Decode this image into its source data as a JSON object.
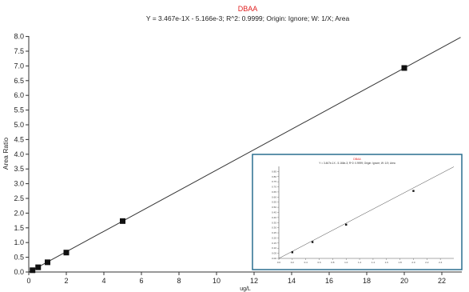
{
  "chart_data": [
    {
      "type": "scatter",
      "title": "DBAA",
      "subtitle": "Y = 3.467e-1X - 5.166e-3; R^2: 0.9999; Origin: Ignore; W: 1/X; Area",
      "xlabel": "ug/L",
      "ylabel": "Area Ratio",
      "xlim": [
        0,
        23
      ],
      "ylim": [
        0,
        8.0
      ],
      "x_ticks": [
        0,
        2,
        4,
        6,
        8,
        10,
        12,
        14,
        16,
        18,
        20,
        22
      ],
      "y_ticks": [
        "0.0",
        "0.5",
        "1.0",
        "1.5",
        "2.0",
        "2.5",
        "3.0",
        "3.5",
        "4.0",
        "4.5",
        "5.0",
        "5.5",
        "6.0",
        "6.5",
        "7.0",
        "7.5",
        "8.0"
      ],
      "fit": {
        "slope": 0.3467,
        "intercept": -0.005166
      },
      "points": [
        {
          "x": 0.2,
          "y": 0.06
        },
        {
          "x": 0.5,
          "y": 0.16
        },
        {
          "x": 1.0,
          "y": 0.33
        },
        {
          "x": 2.0,
          "y": 0.66
        },
        {
          "x": 5.0,
          "y": 1.73
        },
        {
          "x": 20.0,
          "y": 6.93
        }
      ],
      "colors": {
        "title": "#e02020",
        "marker": "#111111",
        "line": "#333333"
      }
    },
    {
      "type": "scatter",
      "title": "DBAA",
      "subtitle": "Y = 3.467e-1X - 5.166e-3; R^2: 0.9999; Origin: Ignore; W: 1/X; Area",
      "xlabel": "",
      "ylabel": "",
      "xlim": [
        0,
        2.6
      ],
      "ylim": [
        0,
        0.9
      ],
      "x_ticks": [
        "0.0",
        "0.2",
        "0.4",
        "0.6",
        "0.8",
        "1.0",
        "1.2",
        "1.4",
        "1.6",
        "1.8",
        "2.0",
        "2.2",
        "2.4"
      ],
      "y_ticks": [
        "0.00",
        "0.05",
        "0.10",
        "0.15",
        "0.20",
        "0.25",
        "0.30",
        "0.35",
        "0.40",
        "0.45",
        "0.50",
        "0.55",
        "0.60",
        "0.65",
        "0.70",
        "0.75",
        "0.80",
        "0.85"
      ],
      "points": [
        {
          "x": 0.2,
          "y": 0.06
        },
        {
          "x": 0.5,
          "y": 0.16
        },
        {
          "x": 1.0,
          "y": 0.33
        },
        {
          "x": 2.0,
          "y": 0.66
        }
      ],
      "colors": {
        "border": "#2a6f8f",
        "title": "#e02020"
      }
    }
  ]
}
